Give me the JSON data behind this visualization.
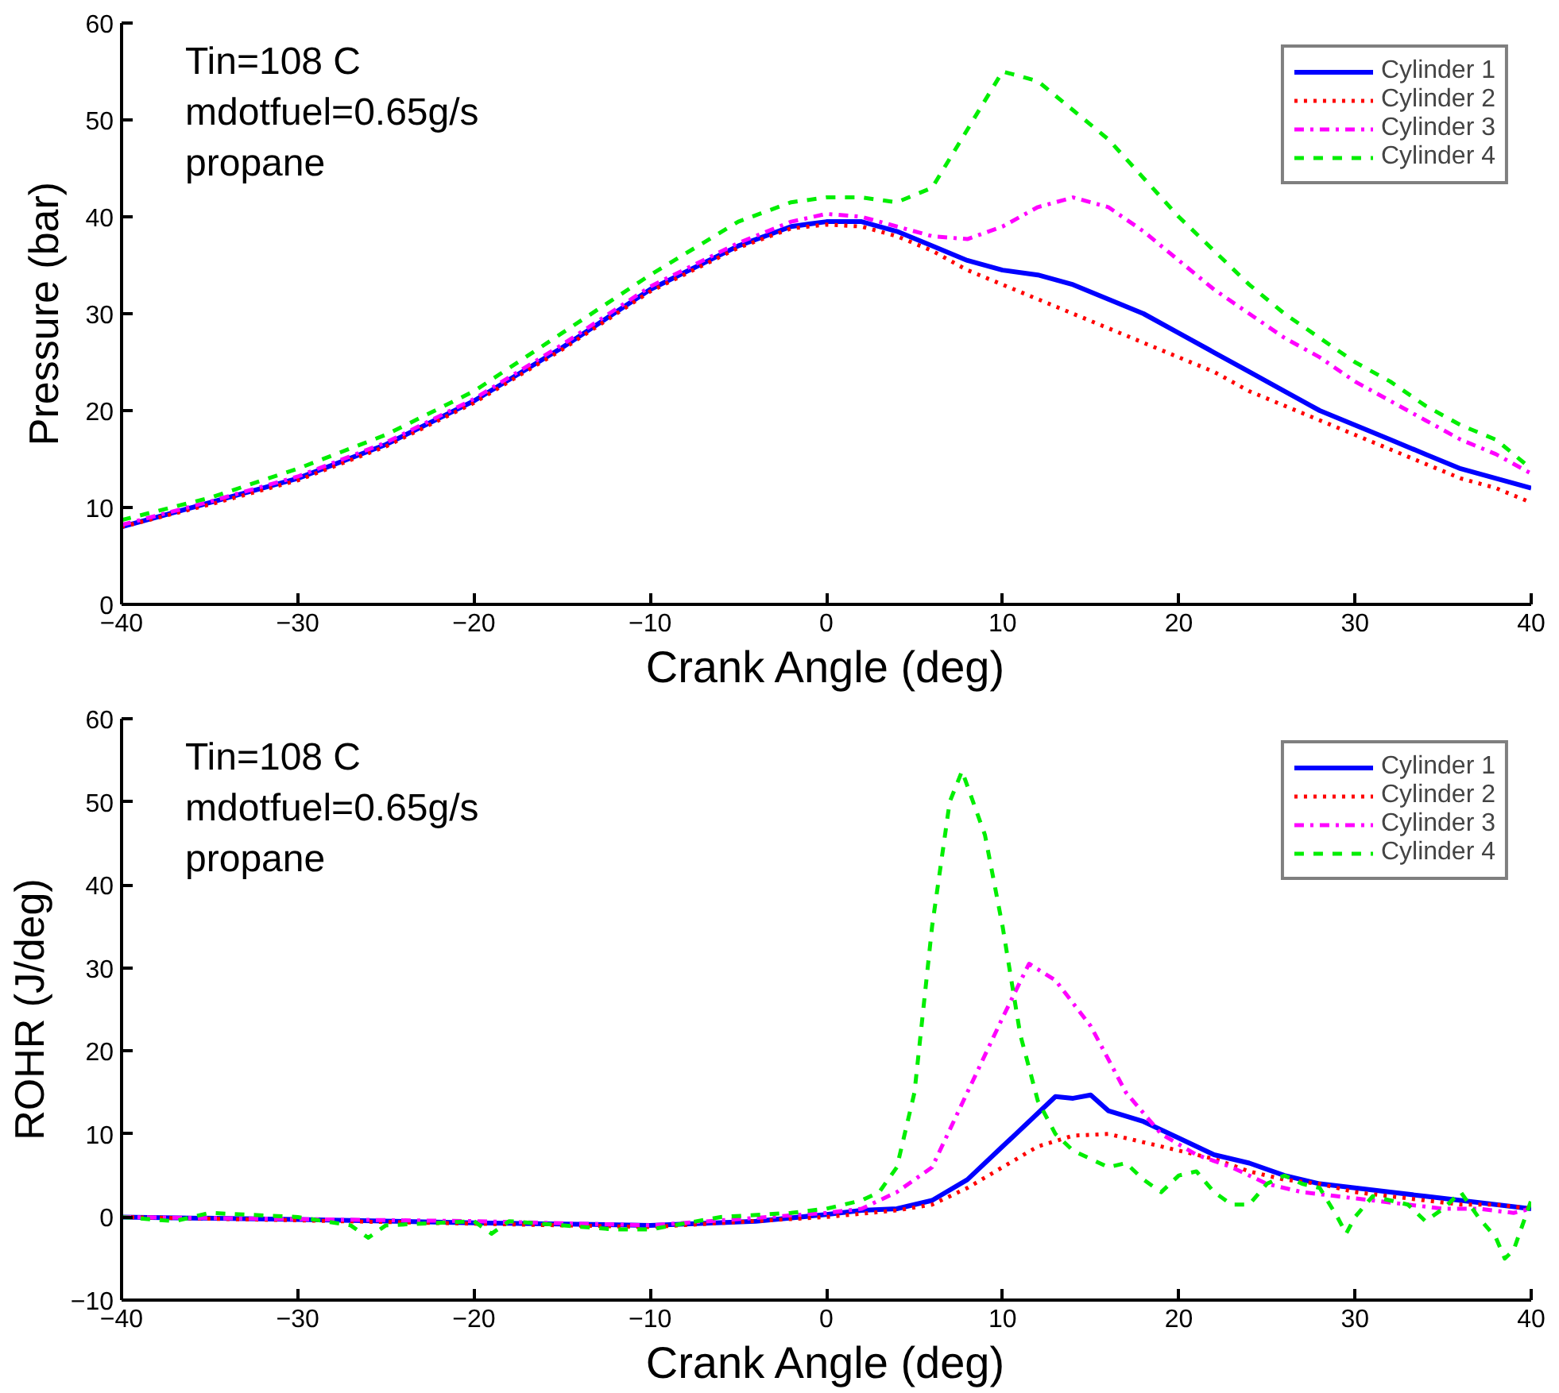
{
  "chart_data": [
    {
      "type": "line",
      "xlabel": "Crank Angle (deg)",
      "ylabel": "Pressure (bar)",
      "xlim": [
        -40,
        40
      ],
      "ylim": [
        0,
        60
      ],
      "xticks": [
        -40,
        -30,
        -20,
        -10,
        0,
        10,
        20,
        30,
        40
      ],
      "yticks": [
        0,
        10,
        20,
        30,
        40,
        50,
        60
      ],
      "grid": false,
      "legend": "top right",
      "annotations": [
        "Tin=108 C",
        "mdotfuel=0.65g/s",
        "propane"
      ],
      "x": [
        -40,
        -35,
        -30,
        -25,
        -20,
        -15,
        -10,
        -5,
        -2,
        0,
        2,
        4,
        6,
        8,
        10,
        12,
        14,
        16,
        18,
        20,
        22,
        24,
        26,
        28,
        30,
        32,
        34,
        36,
        38,
        40
      ],
      "series": [
        {
          "name": "Cylinder 1",
          "color": "#0000ff",
          "line_style": "solid",
          "values": [
            8,
            10.5,
            13,
            16.5,
            21,
            26.5,
            32.5,
            37,
            39,
            39.5,
            39.5,
            38.5,
            37,
            35.5,
            34.5,
            34,
            33,
            31.5,
            30,
            28,
            26,
            24,
            22,
            20,
            18.5,
            17,
            15.5,
            14,
            13,
            12
          ]
        },
        {
          "name": "Cylinder 2",
          "color": "#ff0000",
          "line_style": "dotted",
          "values": [
            8,
            10.3,
            12.8,
            16.3,
            20.8,
            26.3,
            32.3,
            36.8,
            38.8,
            39.2,
            39,
            38,
            36.5,
            34.5,
            33,
            31.5,
            30,
            28.5,
            27,
            25.5,
            24,
            22,
            20.5,
            19,
            17.5,
            16,
            14.5,
            13,
            12,
            10.5
          ]
        },
        {
          "name": "Cylinder 3",
          "color": "#ff00ff",
          "line_style": "dashdot",
          "values": [
            8.2,
            10.6,
            13.2,
            16.7,
            21.2,
            26.8,
            32.8,
            37.3,
            39.5,
            40.3,
            40,
            39,
            38,
            37.7,
            39,
            41,
            42,
            41,
            38.5,
            35.5,
            32.5,
            30,
            27.5,
            25.5,
            23,
            21,
            19,
            17,
            15.5,
            13.5
          ]
        },
        {
          "name": "Cylinder 4",
          "color": "#00ee00",
          "line_style": "dashed",
          "values": [
            8.7,
            11,
            14,
            17.5,
            22,
            28,
            34,
            39.5,
            41.5,
            42,
            42,
            41.5,
            43,
            49,
            55,
            54,
            51,
            48,
            44,
            40,
            36.5,
            33,
            30,
            27.5,
            25,
            23,
            20.5,
            18.5,
            17,
            14
          ]
        }
      ]
    },
    {
      "type": "line",
      "xlabel": "Crank Angle (deg)",
      "ylabel": "ROHR (J/deg)",
      "xlim": [
        -40,
        40
      ],
      "ylim": [
        -10,
        60
      ],
      "xticks": [
        -40,
        -30,
        -20,
        -10,
        0,
        10,
        20,
        30,
        40
      ],
      "yticks": [
        -10,
        0,
        10,
        20,
        30,
        40,
        50,
        60
      ],
      "grid": false,
      "legend": "top right",
      "annotations": [
        "Tin=108 C",
        "mdotfuel=0.65g/s",
        "propane"
      ],
      "series": [
        {
          "name": "Cylinder 1",
          "color": "#0000ff",
          "line_style": "solid",
          "x": [
            -40,
            -30,
            -20,
            -10,
            -4,
            0,
            2,
            4,
            6,
            8,
            10,
            12,
            13,
            14,
            15,
            16,
            18,
            20,
            22,
            24,
            26,
            28,
            30,
            32,
            34,
            36,
            38,
            40
          ],
          "values": [
            0,
            -0.3,
            -0.7,
            -1,
            -0.5,
            0.3,
            0.8,
            1,
            2,
            4.5,
            8.5,
            12.5,
            14.5,
            14.3,
            14.7,
            12.8,
            11.5,
            9.5,
            7.5,
            6.5,
            5,
            4,
            3.5,
            3,
            2.5,
            2,
            1.5,
            1
          ]
        },
        {
          "name": "Cylinder 2",
          "color": "#ff0000",
          "line_style": "dotted",
          "x": [
            -40,
            -20,
            -10,
            0,
            4,
            6,
            8,
            10,
            12,
            14,
            16,
            18,
            20,
            22,
            24,
            26,
            28,
            30,
            32,
            34,
            36,
            38,
            40
          ],
          "values": [
            0,
            -0.8,
            -1.2,
            0,
            0.8,
            1.5,
            3.5,
            6,
            8.5,
            9.8,
            10,
            9,
            8,
            7,
            5.5,
            4.5,
            4,
            3,
            2.5,
            2,
            1.5,
            1.5,
            1
          ]
        },
        {
          "name": "Cylinder 3",
          "color": "#ff00ff",
          "line_style": "dashdot",
          "x": [
            -40,
            -20,
            -10,
            0,
            2,
            4,
            6,
            8,
            10,
            11.5,
            13,
            15,
            17,
            19,
            21,
            23,
            25,
            27,
            29,
            31,
            33,
            35,
            37,
            39,
            40
          ],
          "values": [
            0,
            -0.5,
            -1,
            0.5,
            1,
            3,
            6,
            15,
            24,
            30.5,
            28.5,
            23,
            15,
            10,
            7.5,
            6,
            4,
            3,
            2.5,
            2,
            1.5,
            1,
            1,
            0.5,
            1
          ]
        },
        {
          "name": "Cylinder 4",
          "color": "#00ee00",
          "line_style": "dashed",
          "x": [
            -40,
            -37,
            -35,
            -30,
            -27,
            -26,
            -25,
            -20,
            -19,
            -18,
            -12,
            -10,
            -6,
            -2,
            0,
            2,
            3,
            4,
            5,
            6,
            7,
            7.7,
            9,
            10,
            11,
            12,
            13,
            14,
            15,
            16,
            17,
            18,
            19,
            20,
            21,
            22,
            23,
            24,
            25,
            26,
            27,
            28,
            29,
            29.5,
            30,
            31,
            33,
            34,
            35,
            36,
            37,
            38,
            38.5,
            39,
            40
          ],
          "values": [
            0,
            -0.5,
            0.5,
            0,
            -1,
            -2.5,
            -1,
            -0.5,
            -2,
            -0.5,
            -1.5,
            -1.5,
            0,
            0.5,
            1,
            2,
            3,
            6,
            15,
            35,
            50,
            53.7,
            46,
            35,
            22,
            14,
            10,
            8,
            7,
            6,
            6.5,
            4.5,
            3,
            5,
            5.5,
            3,
            1.5,
            1.5,
            4,
            5,
            4,
            3.5,
            0,
            -2,
            0,
            2.5,
            1.5,
            -0.5,
            1,
            3,
            0,
            -2.5,
            -5,
            -4,
            2
          ]
        }
      ]
    }
  ]
}
